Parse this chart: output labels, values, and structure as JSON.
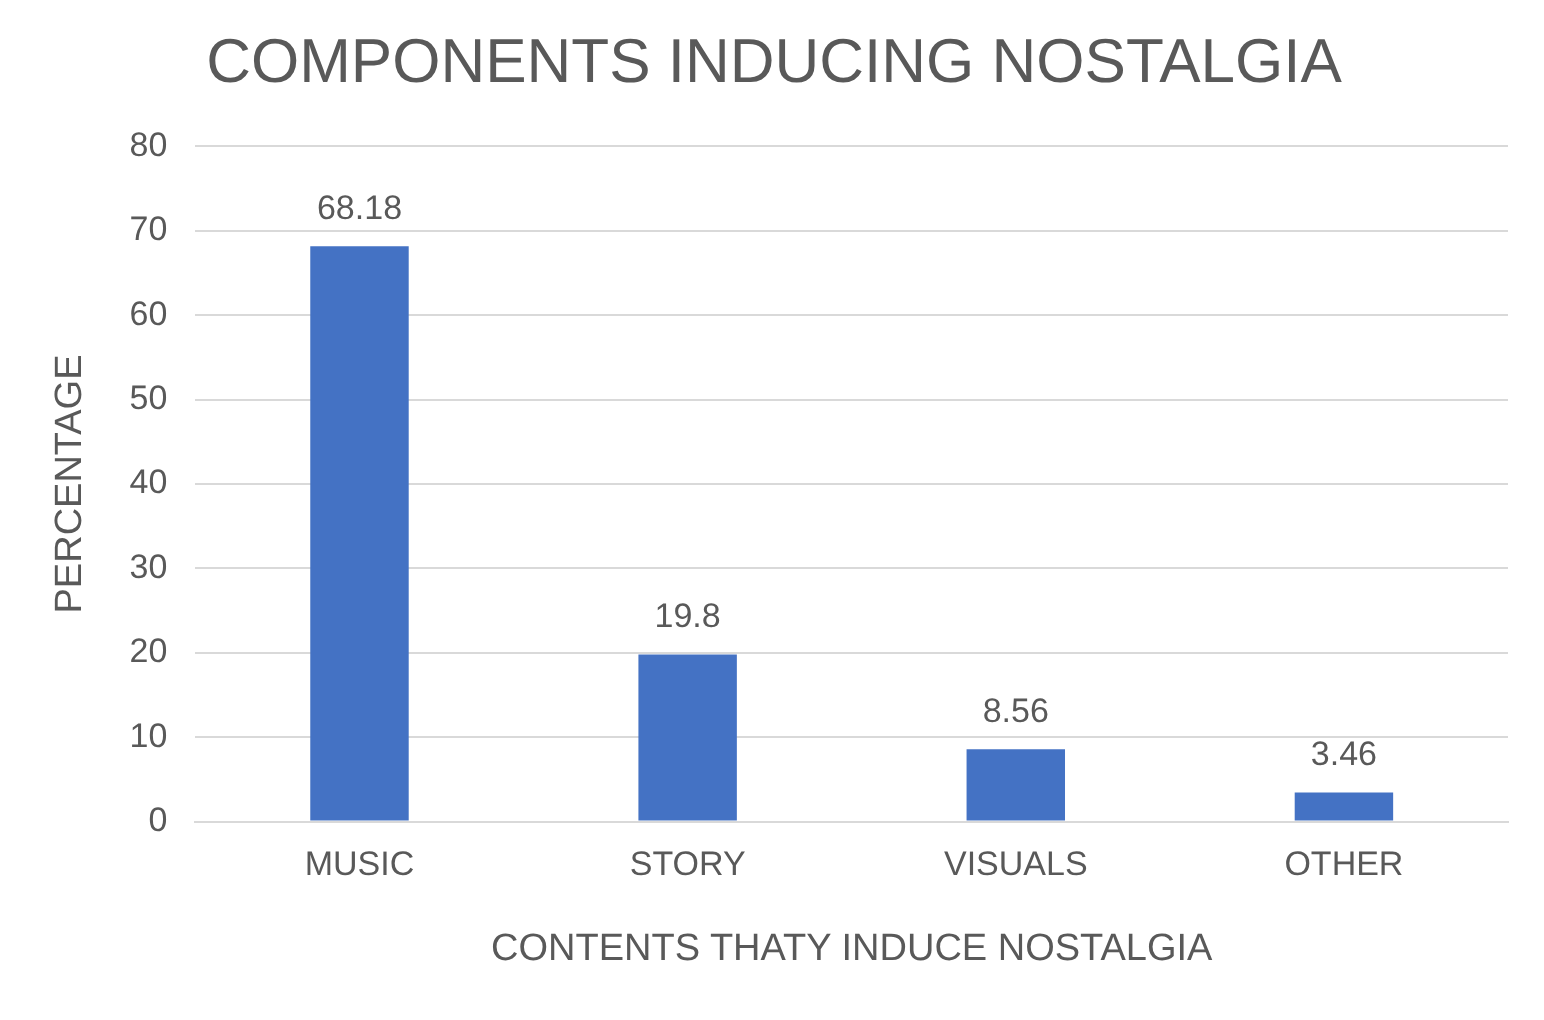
{
  "chart_data": {
    "type": "bar",
    "title": "COMPONENTS INDUCING NOSTALGIA",
    "xlabel": "CONTENTS THATY INDUCE NOSTALGIA",
    "ylabel": "PERCENTAGE",
    "categories": [
      "MUSIC",
      "STORY",
      "VISUALS",
      "OTHER"
    ],
    "values": [
      68.18,
      19.8,
      8.56,
      3.46
    ],
    "color": "#4472c4",
    "ylim": [
      0,
      80
    ],
    "yticks": [
      0,
      10,
      20,
      30,
      40,
      50,
      60,
      70,
      80
    ],
    "grid": "y",
    "data_labels": true
  }
}
